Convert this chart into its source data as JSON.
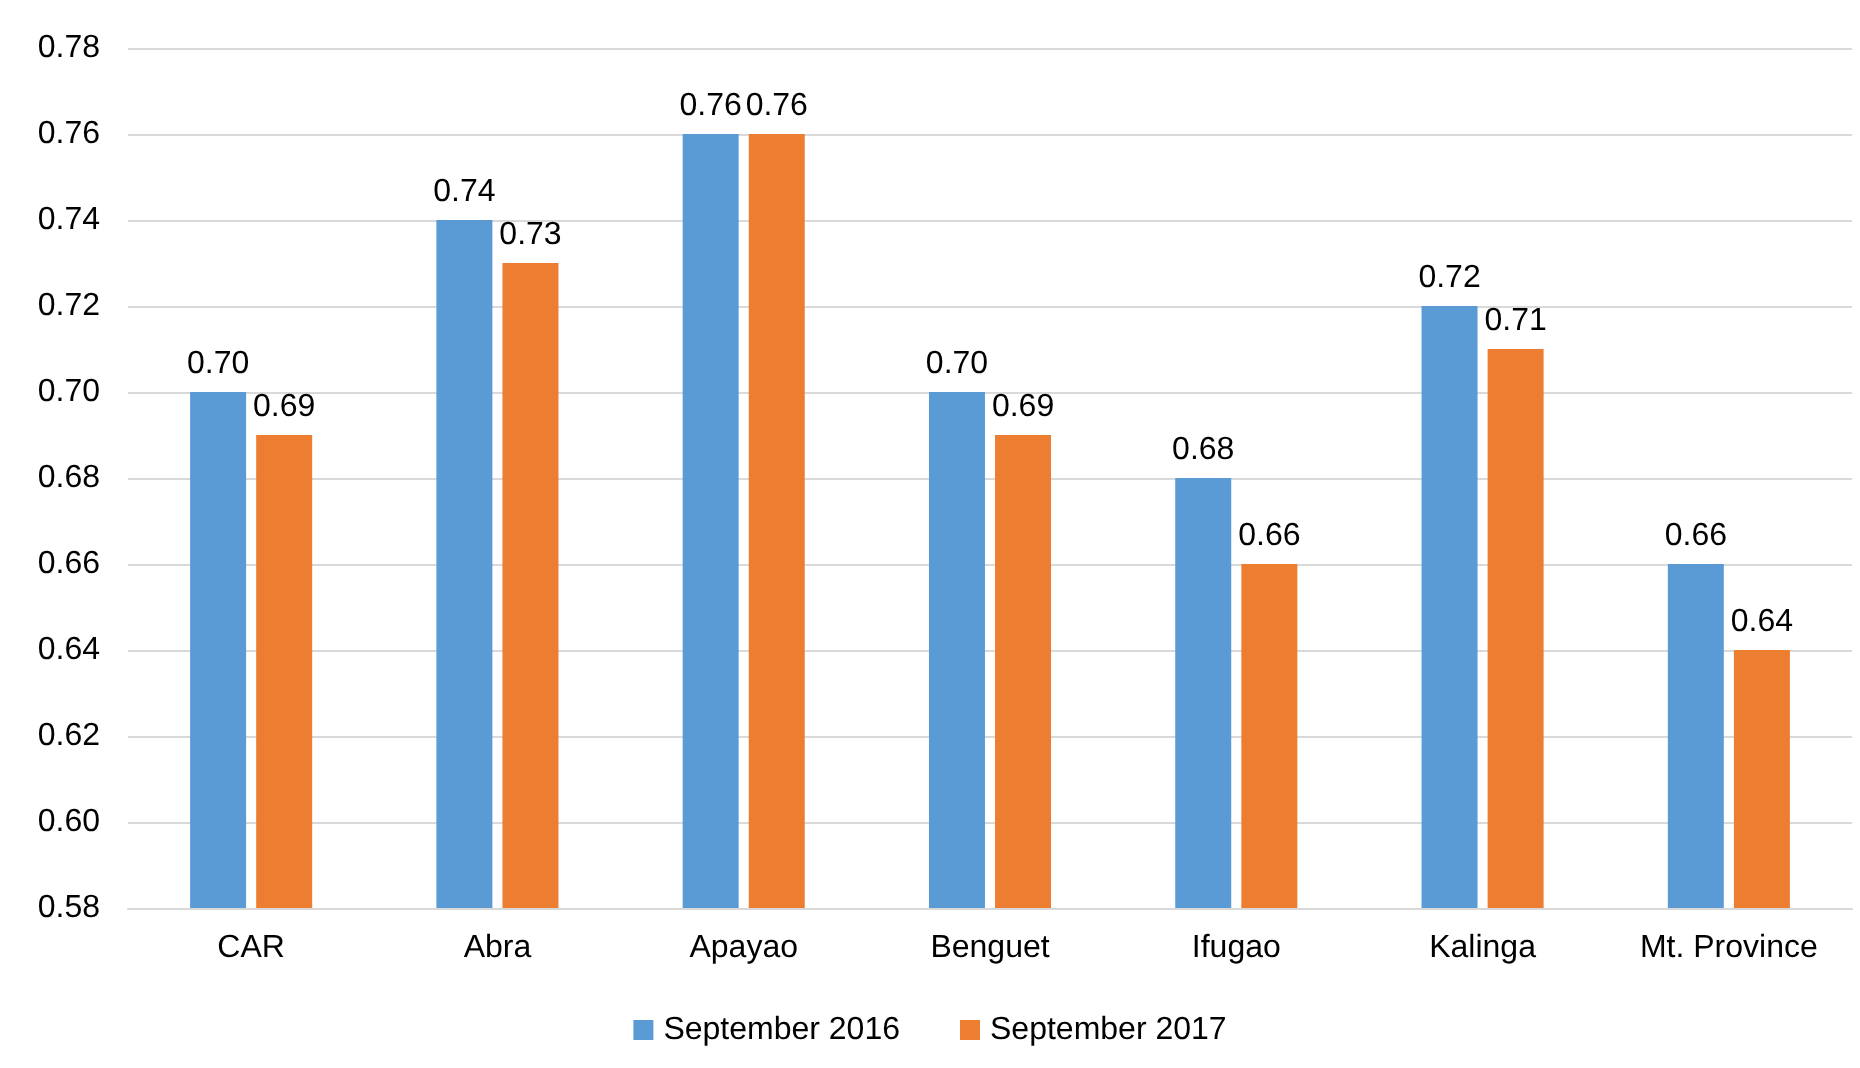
{
  "chart_data": {
    "type": "bar",
    "categories": [
      "CAR",
      "Abra",
      "Apayao",
      "Benguet",
      "Ifugao",
      "Kalinga",
      "Mt. Province"
    ],
    "series": [
      {
        "name": "September 2016",
        "color": "#5b9bd5",
        "values": [
          0.7,
          0.74,
          0.76,
          0.7,
          0.68,
          0.72,
          0.66
        ],
        "value_labels": [
          "0.70",
          "0.74",
          "0.76",
          "0.70",
          "0.68",
          "0.72",
          "0.66"
        ]
      },
      {
        "name": "September 2017",
        "color": "#ed7d31",
        "values": [
          0.69,
          0.73,
          0.76,
          0.69,
          0.66,
          0.71,
          0.64
        ],
        "value_labels": [
          "0.69",
          "0.73",
          "0.76",
          "0.69",
          "0.66",
          "0.71",
          "0.64"
        ]
      }
    ],
    "ylim": [
      0.58,
      0.78
    ],
    "yticks": [
      0.58,
      {
        "value": 0.6,
        "label": "0.60"
      },
      0.62,
      0.64,
      0.66,
      0.68,
      {
        "value": 0.7,
        "label": "0.70"
      },
      0.72,
      0.74,
      0.76,
      0.78
    ],
    "grid": "y",
    "legend": "bottom"
  }
}
